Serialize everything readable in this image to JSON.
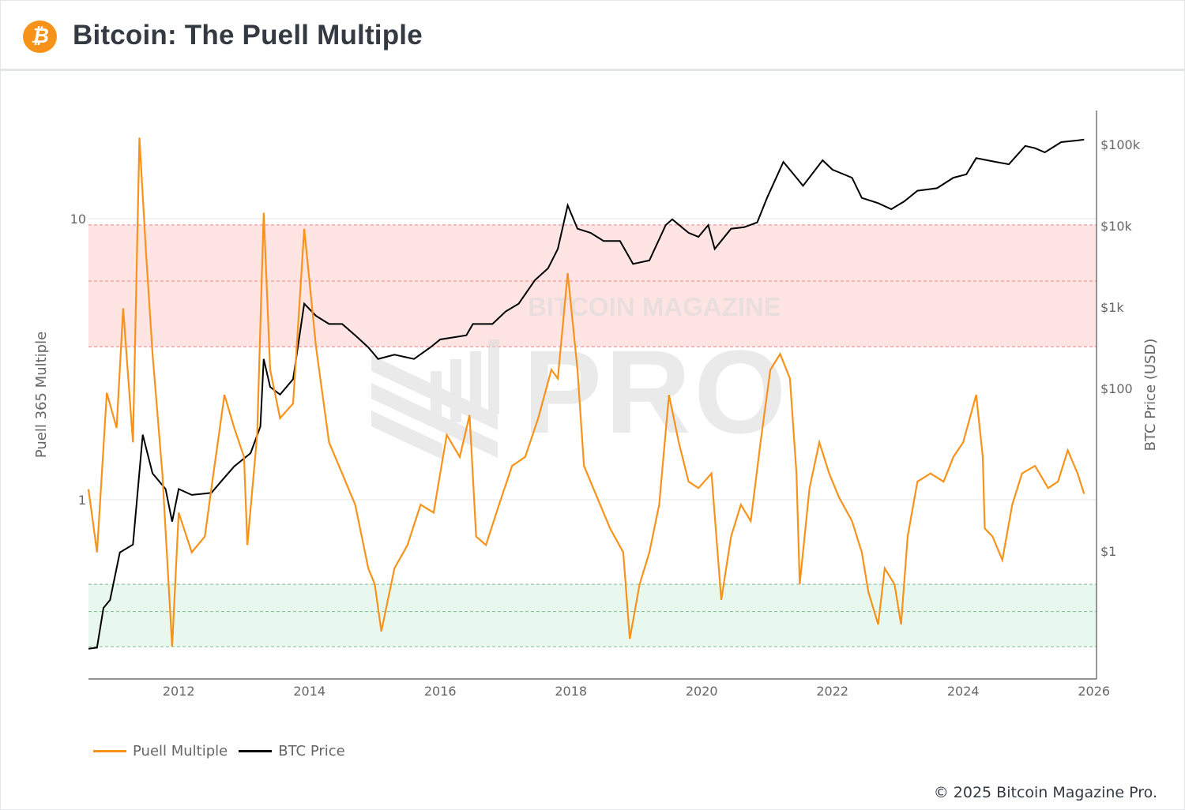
{
  "header": {
    "title": "Bitcoin: The Puell Multiple",
    "logo_icon": "bitcoin-icon",
    "logo_glyph": "₿"
  },
  "watermark": {
    "line1": "BITCOIN MAGAZINE",
    "line2": "PRO"
  },
  "footer": {
    "copyright": "© 2025 Bitcoin Magazine Pro."
  },
  "colors": {
    "puell": "#f7931a",
    "price": "#000000",
    "red_zone": "#ffe4e4",
    "green_zone": "#e8f8ef",
    "red_line": "#f08080",
    "green_line": "#7fbf8f"
  },
  "chart_data": {
    "type": "line",
    "xlabel": "",
    "x_ticks": [
      "2012",
      "2014",
      "2016",
      "2018",
      "2020",
      "2022",
      "2024",
      "2026"
    ],
    "xlim": [
      2010.62,
      2026.04
    ],
    "y_left": {
      "label": "Puell 365 Multiple",
      "scale": "log",
      "range": [
        0.23,
        24
      ],
      "ticks": [
        "1",
        "10"
      ]
    },
    "y_right": {
      "label": "BTC Price (USD)",
      "scale": "log",
      "range": [
        0.027,
        260000
      ],
      "ticks": [
        "$1",
        "$100",
        "$1k",
        "$10k",
        "$100k"
      ],
      "tick_values": [
        1,
        100,
        1000,
        10000,
        100000
      ]
    },
    "grid": true,
    "legend": {
      "placement": "bottom-left",
      "entries": [
        "Puell Multiple",
        "BTC Price"
      ]
    },
    "bands": {
      "red": [
        3.5,
        9.5
      ],
      "red_mid": 6,
      "green": [
        0.3,
        0.5
      ],
      "green_mid": 0.4
    },
    "series": [
      {
        "name": "Puell Multiple",
        "axis": "left",
        "x": [
          2010.62,
          2010.75,
          2010.9,
          2011.05,
          2011.15,
          2011.3,
          2011.4,
          2011.5,
          2011.6,
          2011.75,
          2011.9,
          2012.0,
          2012.2,
          2012.4,
          2012.5,
          2012.7,
          2012.85,
          2013.0,
          2013.05,
          2013.2,
          2013.3,
          2013.4,
          2013.55,
          2013.75,
          2013.92,
          2014.1,
          2014.3,
          2014.5,
          2014.7,
          2014.9,
          2015.0,
          2015.1,
          2015.3,
          2015.5,
          2015.7,
          2015.9,
          2016.0,
          2016.1,
          2016.3,
          2016.45,
          2016.55,
          2016.7,
          2016.9,
          2017.1,
          2017.3,
          2017.5,
          2017.7,
          2017.8,
          2017.95,
          2018.1,
          2018.2,
          2018.4,
          2018.6,
          2018.8,
          2018.9,
          2019.05,
          2019.2,
          2019.35,
          2019.5,
          2019.65,
          2019.8,
          2019.95,
          2020.15,
          2020.3,
          2020.45,
          2020.6,
          2020.75,
          2020.9,
          2021.05,
          2021.2,
          2021.35,
          2021.45,
          2021.5,
          2021.65,
          2021.8,
          2021.95,
          2022.1,
          2022.3,
          2022.45,
          2022.55,
          2022.7,
          2022.8,
          2022.95,
          2023.05,
          2023.15,
          2023.3,
          2023.5,
          2023.7,
          2023.85,
          2024.0,
          2024.2,
          2024.3,
          2024.33,
          2024.45,
          2024.6,
          2024.75,
          2024.9,
          2025.1,
          2025.3,
          2025.45,
          2025.6,
          2025.75,
          2025.85
        ],
        "y": [
          1.09,
          0.65,
          2.4,
          1.8,
          4.8,
          1.6,
          19.4,
          7.6,
          3.3,
          1.24,
          0.3,
          0.9,
          0.65,
          0.74,
          1.1,
          2.36,
          1.8,
          1.42,
          0.69,
          1.7,
          10.5,
          2.9,
          1.95,
          2.2,
          9.2,
          3.5,
          1.6,
          1.24,
          0.96,
          0.57,
          0.5,
          0.34,
          0.57,
          0.69,
          0.96,
          0.9,
          1.24,
          1.7,
          1.42,
          2.0,
          0.74,
          0.69,
          0.96,
          1.32,
          1.42,
          1.95,
          2.9,
          2.7,
          6.4,
          2.9,
          1.32,
          1.02,
          0.79,
          0.65,
          0.32,
          0.5,
          0.65,
          0.96,
          2.36,
          1.6,
          1.16,
          1.1,
          1.24,
          0.44,
          0.74,
          0.96,
          0.84,
          1.6,
          2.9,
          3.3,
          2.7,
          1.24,
          0.5,
          1.1,
          1.6,
          1.24,
          1.02,
          0.84,
          0.65,
          0.47,
          0.36,
          0.57,
          0.5,
          0.36,
          0.74,
          1.16,
          1.24,
          1.16,
          1.42,
          1.6,
          2.36,
          1.42,
          0.79,
          0.74,
          0.61,
          0.96,
          1.24,
          1.32,
          1.1,
          1.16,
          1.5,
          1.24,
          1.05
        ]
      },
      {
        "name": "BTC Price",
        "axis": "right",
        "x": [
          2010.62,
          2010.75,
          2010.85,
          2010.95,
          2011.1,
          2011.3,
          2011.45,
          2011.6,
          2011.8,
          2011.9,
          2012.0,
          2012.2,
          2012.5,
          2012.65,
          2012.85,
          2013.1,
          2013.25,
          2013.3,
          2013.4,
          2013.55,
          2013.75,
          2013.92,
          2014.1,
          2014.3,
          2014.5,
          2014.7,
          2014.9,
          2015.05,
          2015.3,
          2015.6,
          2015.85,
          2016.0,
          2016.4,
          2016.5,
          2016.8,
          2017.0,
          2017.2,
          2017.45,
          2017.65,
          2017.8,
          2017.95,
          2018.1,
          2018.3,
          2018.5,
          2018.75,
          2018.95,
          2019.2,
          2019.45,
          2019.55,
          2019.8,
          2019.95,
          2020.1,
          2020.2,
          2020.45,
          2020.65,
          2020.85,
          2021.0,
          2021.25,
          2021.45,
          2021.55,
          2021.85,
          2022.0,
          2022.3,
          2022.45,
          2022.7,
          2022.9,
          2023.1,
          2023.3,
          2023.6,
          2023.85,
          2024.05,
          2024.2,
          2024.5,
          2024.7,
          2024.95,
          2025.1,
          2025.25,
          2025.5,
          2025.75,
          2025.85
        ],
        "y": [
          0.063,
          0.065,
          0.2,
          0.25,
          0.96,
          1.2,
          27,
          9,
          5.8,
          2.3,
          5.8,
          4.9,
          5.2,
          7.2,
          11,
          16,
          34,
          230,
          104,
          84,
          130,
          1100,
          780,
          620,
          620,
          450,
          320,
          230,
          260,
          230,
          320,
          400,
          450,
          620,
          620,
          880,
          1100,
          2150,
          3000,
          5200,
          17900,
          9200,
          8200,
          6500,
          6500,
          3400,
          3750,
          10200,
          12000,
          8200,
          7300,
          10200,
          5200,
          9200,
          9600,
          11000,
          22000,
          61000,
          39000,
          31000,
          64000,
          49000,
          39000,
          22000,
          19000,
          16000,
          20000,
          27000,
          29000,
          39000,
          43000,
          68000,
          61000,
          57000,
          96000,
          90000,
          80000,
          107000,
          112000,
          115000
        ]
      }
    ]
  }
}
